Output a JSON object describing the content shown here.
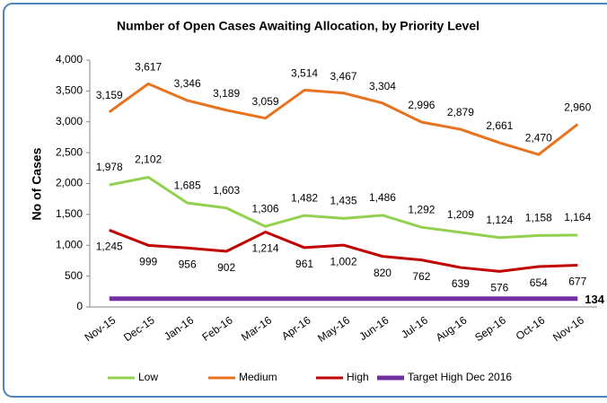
{
  "chart_data": {
    "type": "line",
    "title": "Number of  Open Cases Awaiting Allocation, by Priority Level",
    "y_label": "No of Cases",
    "categories": [
      "Nov-15",
      "Dec-15",
      "Jan-16",
      "Feb-16",
      "Mar-16",
      "Apr-16",
      "May-16",
      "Jun-16",
      "Jul-16",
      "Aug-16",
      "Sep-16",
      "Oct-16",
      "Nov-16"
    ],
    "series": [
      {
        "name": "Low",
        "color": "#92d050",
        "values": [
          1978,
          2102,
          1685,
          1603,
          1306,
          1482,
          1435,
          1486,
          1292,
          1209,
          1124,
          1158,
          1164
        ],
        "value_labels": [
          "1,978",
          "2,102",
          "1,685",
          "1,603",
          "1,306",
          "1,482",
          "1,435",
          "1,486",
          "1,292",
          "1,209",
          "1,124",
          "1,158",
          "1,164"
        ]
      },
      {
        "name": "Medium",
        "color": "#e8731e",
        "values": [
          3159,
          3617,
          3346,
          3189,
          3059,
          3514,
          3467,
          3304,
          2996,
          2879,
          2661,
          2470,
          2960
        ],
        "value_labels": [
          "3,159",
          "3,617",
          "3,346",
          "3,189",
          "3,059",
          "3,514",
          "3,467",
          "3,304",
          "2,996",
          "2,879",
          "2,661",
          "2,470",
          "2,960"
        ]
      },
      {
        "name": "High",
        "color": "#c00000",
        "values": [
          1245,
          999,
          956,
          902,
          1214,
          961,
          1002,
          820,
          762,
          639,
          576,
          654,
          677
        ],
        "value_labels": [
          "1,245",
          "999",
          "956",
          "902",
          "1,214",
          "961",
          "1,002",
          "820",
          "762",
          "639",
          "576",
          "654",
          "677"
        ]
      },
      {
        "name": "Target High Dec 2016",
        "color": "#7030a0",
        "values": [
          134,
          134,
          134,
          134,
          134,
          134,
          134,
          134,
          134,
          134,
          134,
          134,
          134
        ],
        "value_labels": [
          null,
          null,
          null,
          null,
          null,
          null,
          null,
          null,
          null,
          null,
          null,
          null,
          "134"
        ]
      }
    ],
    "ylim": [
      0,
      4000
    ],
    "yticks": [
      0,
      500,
      {
        "value": 1000,
        "label": "1,000"
      },
      {
        "value": 1500,
        "label": "1,500"
      },
      {
        "value": 2000,
        "label": "2,000"
      },
      {
        "value": 2500,
        "label": "2,500"
      },
      {
        "value": 3000,
        "label": "3,000"
      },
      {
        "value": 3500,
        "label": "3,500"
      },
      {
        "value": 4000,
        "label": "4,000"
      }
    ],
    "grid": false,
    "legend": "bottom"
  }
}
